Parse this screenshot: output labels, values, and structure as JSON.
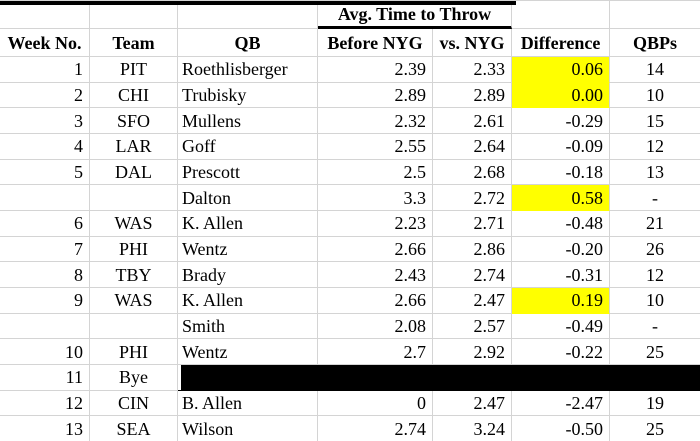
{
  "title": "Avg. Time to Throw",
  "columns": [
    {
      "key": "week",
      "label": "Week No."
    },
    {
      "key": "team",
      "label": "Team"
    },
    {
      "key": "qb",
      "label": "QB"
    },
    {
      "key": "before",
      "label": "Before NYG"
    },
    {
      "key": "vs",
      "label": "vs. NYG"
    },
    {
      "key": "diff",
      "label": "Difference"
    },
    {
      "key": "qbps",
      "label": "QBPs"
    }
  ],
  "colors": {
    "highlight": "#ffff00",
    "bye_fill": "#000000",
    "gridline": "#d4d4d4",
    "border_accent": "#000000"
  },
  "rows": [
    {
      "week": "1",
      "team": "PIT",
      "qb": "Roethlisberger",
      "before": "2.39",
      "vs": "2.33",
      "diff": "0.06",
      "qbps": "14",
      "diff_highlight": true
    },
    {
      "week": "2",
      "team": "CHI",
      "qb": "Trubisky",
      "before": "2.89",
      "vs": "2.89",
      "diff": "0.00",
      "qbps": "10",
      "diff_highlight": true
    },
    {
      "week": "3",
      "team": "SFO",
      "qb": "Mullens",
      "before": "2.32",
      "vs": "2.61",
      "diff": "-0.29",
      "qbps": "15",
      "diff_highlight": false
    },
    {
      "week": "4",
      "team": "LAR",
      "qb": "Goff",
      "before": "2.55",
      "vs": "2.64",
      "diff": "-0.09",
      "qbps": "12",
      "diff_highlight": false
    },
    {
      "week": "5",
      "team": "DAL",
      "qb": "Prescott",
      "before": "2.5",
      "vs": "2.68",
      "diff": "-0.18",
      "qbps": "13",
      "diff_highlight": false
    },
    {
      "week": "",
      "team": "",
      "qb": "Dalton",
      "before": "3.3",
      "vs": "2.72",
      "diff": "0.58",
      "qbps": "-",
      "diff_highlight": true
    },
    {
      "week": "6",
      "team": "WAS",
      "qb": "K. Allen",
      "before": "2.23",
      "vs": "2.71",
      "diff": "-0.48",
      "qbps": "21",
      "diff_highlight": false
    },
    {
      "week": "7",
      "team": "PHI",
      "qb": "Wentz",
      "before": "2.66",
      "vs": "2.86",
      "diff": "-0.20",
      "qbps": "26",
      "diff_highlight": false
    },
    {
      "week": "8",
      "team": "TBY",
      "qb": "Brady",
      "before": "2.43",
      "vs": "2.74",
      "diff": "-0.31",
      "qbps": "12",
      "diff_highlight": false
    },
    {
      "week": "9",
      "team": "WAS",
      "qb": "K. Allen",
      "before": "2.66",
      "vs": "2.47",
      "diff": "0.19",
      "qbps": "10",
      "diff_highlight": true
    },
    {
      "week": "",
      "team": "",
      "qb": "Smith",
      "before": "2.08",
      "vs": "2.57",
      "diff": "-0.49",
      "qbps": "-",
      "diff_highlight": false
    },
    {
      "week": "10",
      "team": "PHI",
      "qb": "Wentz",
      "before": "2.7",
      "vs": "2.92",
      "diff": "-0.22",
      "qbps": "25",
      "diff_highlight": false
    },
    {
      "week": "11",
      "team": "Bye",
      "bye": true
    },
    {
      "week": "12",
      "team": "CIN",
      "qb": "B. Allen",
      "before": "0",
      "vs": "2.47",
      "diff": "-2.47",
      "qbps": "19",
      "diff_highlight": false
    },
    {
      "week": "13",
      "team": "SEA",
      "qb": "Wilson",
      "before": "2.74",
      "vs": "3.24",
      "diff": "-0.50",
      "qbps": "25",
      "diff_highlight": false
    }
  ]
}
